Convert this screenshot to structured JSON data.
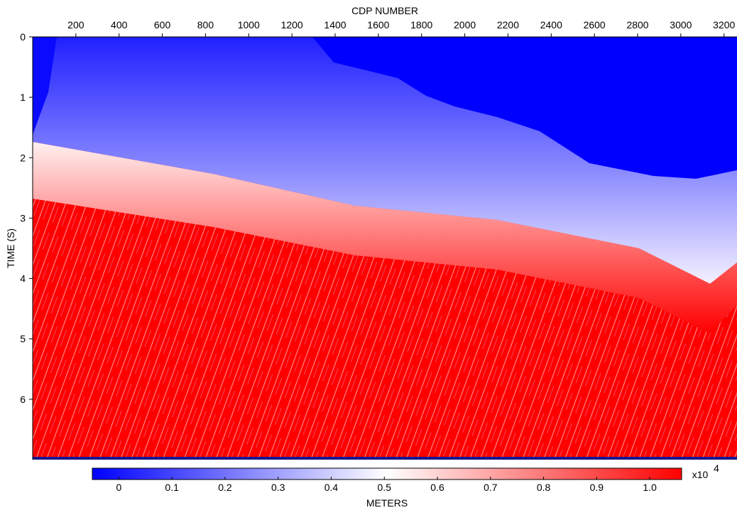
{
  "chart_data": {
    "type": "image",
    "title": "CDP NUMBER",
    "y_label": "TIME (S)",
    "xlim": [
      0,
      3260
    ],
    "xticks": [
      200,
      400,
      600,
      800,
      1000,
      1200,
      1400,
      1600,
      1800,
      2000,
      2200,
      2400,
      2600,
      2800,
      3000,
      3200
    ],
    "ylim": [
      0,
      7
    ],
    "yticks": [
      0,
      1,
      2,
      3,
      4,
      5,
      6
    ],
    "colorbar": {
      "label": "METERS",
      "multiplier": "x10",
      "exponent": "4",
      "lim": [
        -0.05,
        1.06
      ],
      "ticks": [
        0,
        0.1,
        0.2,
        0.3,
        0.4,
        0.5,
        0.6,
        0.7,
        0.8,
        0.9,
        {
          "value": 1,
          "label": "1.0"
        }
      ],
      "colors": [
        "#0000ff",
        "#ffffff",
        "#ff0000"
      ]
    }
  }
}
